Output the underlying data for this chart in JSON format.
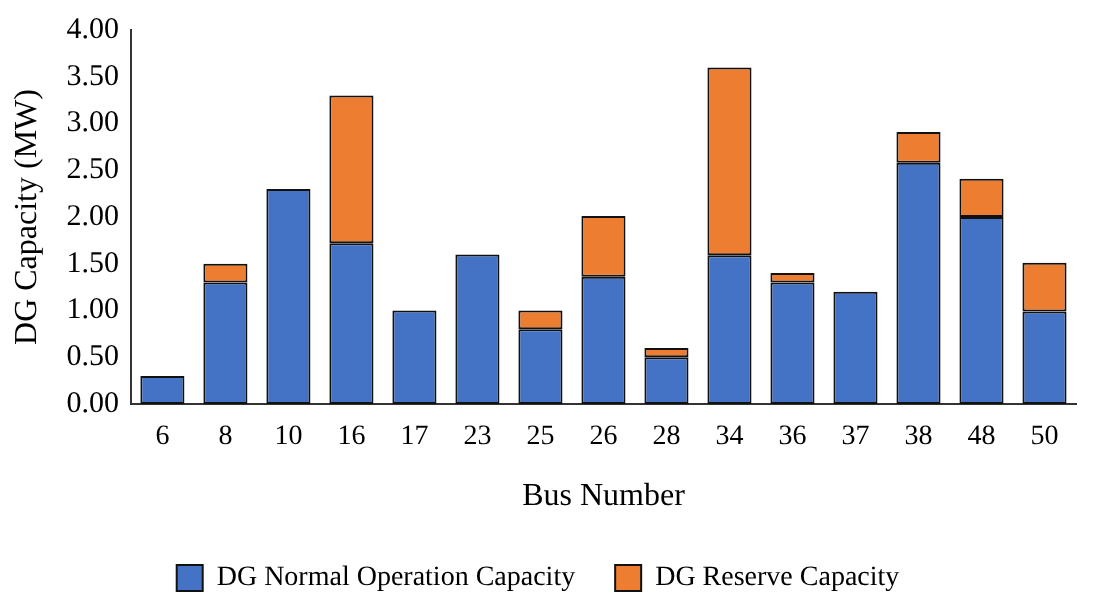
{
  "chart_data": {
    "type": "bar",
    "stacked": true,
    "xlabel": "Bus Number",
    "ylabel": "DG Capacity (MW)",
    "categories": [
      "6",
      "8",
      "10",
      "16",
      "17",
      "23",
      "25",
      "26",
      "28",
      "34",
      "36",
      "37",
      "38",
      "48",
      "50"
    ],
    "series": [
      {
        "name": "DG Normal Operation Capacity",
        "color": "#4472c4",
        "values": [
          0.3,
          1.3,
          2.3,
          1.72,
          1.0,
          1.6,
          0.8,
          1.36,
          0.5,
          1.59,
          1.3,
          1.2,
          2.58,
          2.0,
          0.99
        ]
      },
      {
        "name": "DG Reserve Capacity",
        "color": "#ed7d31",
        "values": [
          0,
          0.2,
          0,
          1.58,
          0,
          0,
          0.2,
          0.65,
          0.1,
          2.01,
          0.1,
          0,
          0.33,
          0.41,
          0.52
        ]
      }
    ],
    "ylim": [
      0,
      4
    ],
    "yticks": [
      {
        "value": 0,
        "label": "0.00"
      },
      {
        "value": 0.5,
        "label": "0.50"
      },
      {
        "value": 1,
        "label": "1.00"
      },
      {
        "value": 1.5,
        "label": "1.50"
      },
      {
        "value": 2,
        "label": "2.00"
      },
      {
        "value": 2.5,
        "label": "2.50"
      },
      {
        "value": 3,
        "label": "3.00"
      },
      {
        "value": 3.5,
        "label": "3.50"
      },
      {
        "value": 4,
        "label": "4.00"
      }
    ],
    "grid": false,
    "legend": "bottom"
  }
}
